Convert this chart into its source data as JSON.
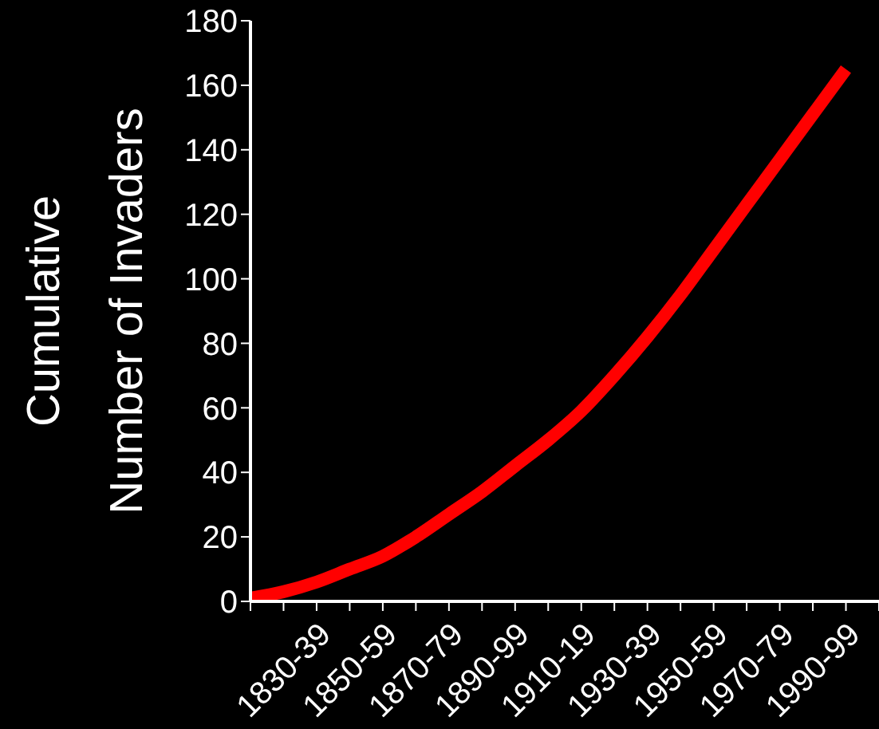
{
  "chart_data": {
    "type": "line",
    "ylabel": "Cumulative\nNumber of Invaders",
    "categories": [
      null,
      null,
      "1830-39",
      null,
      "1850-59",
      null,
      "1870-79",
      null,
      "1890-99",
      null,
      "1910-19",
      null,
      "1930-39",
      null,
      "1950-59",
      null,
      "1970-79",
      null,
      "1990-99",
      null
    ],
    "values": [
      1,
      3,
      6,
      10,
      14,
      20,
      27,
      34,
      42,
      50,
      59,
      70,
      82,
      95,
      109,
      123,
      137,
      151,
      165,
      null
    ],
    "color": "#ff0000",
    "line_style": "solid",
    "ylim": [
      0,
      180
    ],
    "yticks": [
      0,
      20,
      40,
      60,
      80,
      100,
      120,
      140,
      160,
      180
    ]
  }
}
